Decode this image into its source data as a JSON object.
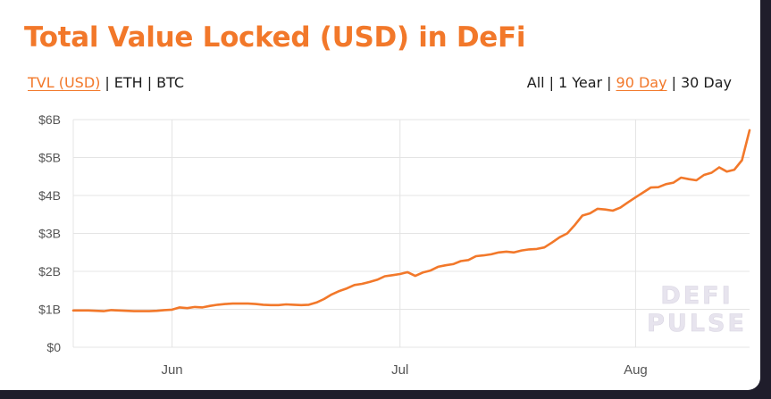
{
  "title": "Total Value Locked (USD) in DeFi",
  "colors": {
    "accent": "#f2782a",
    "text": "#1d1d1d",
    "grid": "#e4e4e4",
    "axis_text": "#555555",
    "watermark": "#e7e4ee"
  },
  "metric_options": [
    {
      "label": "TVL (USD)",
      "active": true
    },
    {
      "label": "ETH",
      "active": false
    },
    {
      "label": "BTC",
      "active": false
    }
  ],
  "range_options": [
    {
      "label": "All",
      "active": false
    },
    {
      "label": "1 Year",
      "active": false
    },
    {
      "label": "90 Day",
      "active": true
    },
    {
      "label": "30 Day",
      "active": false
    }
  ],
  "separator": "|",
  "watermark": [
    "DEFI",
    "PULSE"
  ],
  "chart_data": {
    "type": "line",
    "title": "Total Value Locked (USD) in DeFi",
    "xlabel": "",
    "ylabel": "",
    "x_start": "2020-05-19",
    "x_end": "2020-08-16",
    "x_ticks": [
      {
        "label": "Jun",
        "date": "2020-06-01"
      },
      {
        "label": "Jul",
        "date": "2020-07-01"
      },
      {
        "label": "Aug",
        "date": "2020-08-01"
      }
    ],
    "y_ticks": [
      {
        "label": "$0",
        "value": 0
      },
      {
        "label": "$1B",
        "value": 1
      },
      {
        "label": "$2B",
        "value": 2
      },
      {
        "label": "$3B",
        "value": 3
      },
      {
        "label": "$4B",
        "value": 4
      },
      {
        "label": "$5B",
        "value": 5
      },
      {
        "label": "$6B",
        "value": 6
      }
    ],
    "ylim": [
      0,
      6
    ],
    "grid": true,
    "legend": "none",
    "series": [
      {
        "color": "#f2782a",
        "points": [
          [
            "2020-05-19",
            0.97
          ],
          [
            "2020-05-21",
            0.97
          ],
          [
            "2020-05-22",
            0.96
          ],
          [
            "2020-05-23",
            0.95
          ],
          [
            "2020-05-24",
            0.98
          ],
          [
            "2020-05-25",
            0.97
          ],
          [
            "2020-05-27",
            0.95
          ],
          [
            "2020-05-29",
            0.95
          ],
          [
            "2020-05-30",
            0.96
          ],
          [
            "2020-05-31",
            0.98
          ],
          [
            "2020-06-01",
            0.99
          ],
          [
            "2020-06-02",
            1.05
          ],
          [
            "2020-06-03",
            1.03
          ],
          [
            "2020-06-04",
            1.06
          ],
          [
            "2020-06-05",
            1.05
          ],
          [
            "2020-06-06",
            1.09
          ],
          [
            "2020-06-07",
            1.12
          ],
          [
            "2020-06-08",
            1.14
          ],
          [
            "2020-06-09",
            1.15
          ],
          [
            "2020-06-11",
            1.15
          ],
          [
            "2020-06-12",
            1.14
          ],
          [
            "2020-06-13",
            1.12
          ],
          [
            "2020-06-14",
            1.11
          ],
          [
            "2020-06-15",
            1.11
          ],
          [
            "2020-06-16",
            1.13
          ],
          [
            "2020-06-17",
            1.12
          ],
          [
            "2020-06-18",
            1.11
          ],
          [
            "2020-06-19",
            1.12
          ],
          [
            "2020-06-20",
            1.18
          ],
          [
            "2020-06-21",
            1.27
          ],
          [
            "2020-06-22",
            1.39
          ],
          [
            "2020-06-23",
            1.48
          ],
          [
            "2020-06-24",
            1.55
          ],
          [
            "2020-06-25",
            1.64
          ],
          [
            "2020-06-26",
            1.67
          ],
          [
            "2020-06-27",
            1.72
          ],
          [
            "2020-06-28",
            1.78
          ],
          [
            "2020-06-29",
            1.87
          ],
          [
            "2020-06-30",
            1.9
          ],
          [
            "2020-07-01",
            1.93
          ],
          [
            "2020-07-02",
            1.98
          ],
          [
            "2020-07-03",
            1.88
          ],
          [
            "2020-07-04",
            1.97
          ],
          [
            "2020-07-05",
            2.02
          ],
          [
            "2020-07-06",
            2.12
          ],
          [
            "2020-07-07",
            2.16
          ],
          [
            "2020-07-08",
            2.19
          ],
          [
            "2020-07-09",
            2.27
          ],
          [
            "2020-07-10",
            2.3
          ],
          [
            "2020-07-11",
            2.4
          ],
          [
            "2020-07-12",
            2.42
          ],
          [
            "2020-07-13",
            2.45
          ],
          [
            "2020-07-14",
            2.5
          ],
          [
            "2020-07-15",
            2.52
          ],
          [
            "2020-07-16",
            2.5
          ],
          [
            "2020-07-17",
            2.55
          ],
          [
            "2020-07-18",
            2.58
          ],
          [
            "2020-07-19",
            2.59
          ],
          [
            "2020-07-20",
            2.63
          ],
          [
            "2020-07-21",
            2.76
          ],
          [
            "2020-07-22",
            2.9
          ],
          [
            "2020-07-23",
            3.0
          ],
          [
            "2020-07-24",
            3.22
          ],
          [
            "2020-07-25",
            3.47
          ],
          [
            "2020-07-26",
            3.53
          ],
          [
            "2020-07-27",
            3.65
          ],
          [
            "2020-07-28",
            3.63
          ],
          [
            "2020-07-29",
            3.6
          ],
          [
            "2020-07-30",
            3.68
          ],
          [
            "2020-07-31",
            3.82
          ],
          [
            "2020-08-01",
            3.95
          ],
          [
            "2020-08-02",
            4.08
          ],
          [
            "2020-08-03",
            4.21
          ],
          [
            "2020-08-04",
            4.22
          ],
          [
            "2020-08-05",
            4.3
          ],
          [
            "2020-08-06",
            4.34
          ],
          [
            "2020-08-07",
            4.47
          ],
          [
            "2020-08-08",
            4.43
          ],
          [
            "2020-08-09",
            4.4
          ],
          [
            "2020-08-10",
            4.54
          ],
          [
            "2020-08-11",
            4.6
          ],
          [
            "2020-08-12",
            4.74
          ],
          [
            "2020-08-13",
            4.63
          ],
          [
            "2020-08-14",
            4.68
          ],
          [
            "2020-08-15",
            4.93
          ],
          [
            "2020-08-16",
            5.72
          ]
        ]
      }
    ]
  }
}
